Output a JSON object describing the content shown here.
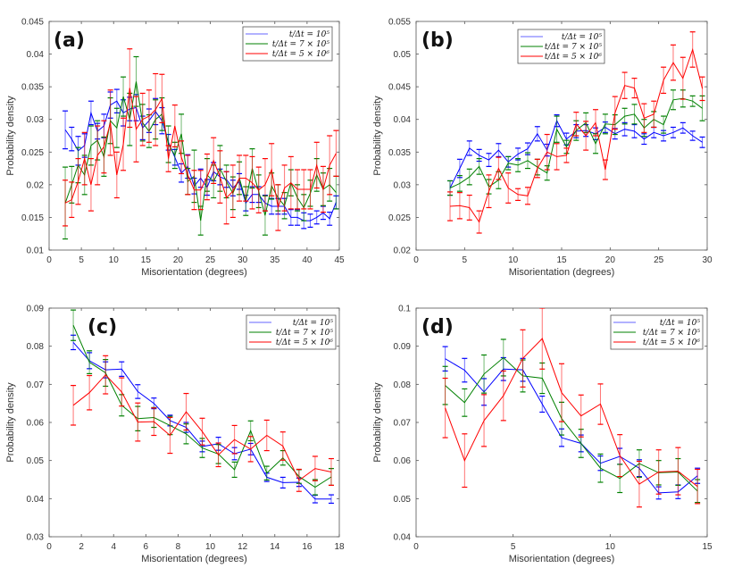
{
  "legend": [
    {
      "name": "t/Δt = 10⁵",
      "color": "#0000ff"
    },
    {
      "name": "t/Δt = 7 × 10⁵",
      "color": "#008000"
    },
    {
      "name": "t/Δt = 5 × 10⁶",
      "color": "#ff0000"
    }
  ],
  "chart_data": [
    {
      "type": "line",
      "panel_label": "(a)",
      "xlabel": "Misorientation (degrees)",
      "ylabel": "Probability density",
      "xlim": [
        0,
        45
      ],
      "ylim": [
        0.01,
        0.045
      ],
      "xticks": [
        0,
        5,
        10,
        15,
        20,
        25,
        30,
        35,
        40,
        45
      ],
      "yticks": [
        0.01,
        0.015,
        0.02,
        0.025,
        0.03,
        0.035,
        0.04,
        0.045
      ],
      "legend_position": "top-right",
      "x": [
        2.5,
        3.5,
        4.5,
        5.5,
        6.5,
        7.5,
        8.5,
        9.5,
        10.5,
        11.5,
        12.5,
        13.5,
        14.5,
        15.5,
        16.5,
        17.5,
        18.5,
        19.5,
        20.5,
        21.5,
        22.5,
        23.5,
        24.5,
        25.5,
        26.5,
        27.5,
        28.5,
        29.5,
        30.5,
        31.5,
        32.5,
        33.5,
        34.5,
        35.5,
        36.5,
        37.5,
        38.5,
        39.5,
        40.5,
        41.5,
        42.5,
        43.5,
        44.5
      ],
      "series": [
        {
          "name": "t/Δt = 10⁵",
          "color": "#0000ff",
          "values": [
            0.0284,
            0.027,
            0.0252,
            0.026,
            0.031,
            0.0282,
            0.029,
            0.0322,
            0.0328,
            0.031,
            0.0316,
            0.0318,
            0.0287,
            0.0298,
            0.0312,
            0.0298,
            0.0265,
            0.0242,
            0.0218,
            0.0228,
            0.0198,
            0.021,
            0.0196,
            0.022,
            0.0212,
            0.0208,
            0.0195,
            0.0205,
            0.0172,
            0.0185,
            0.0185,
            0.0172,
            0.0167,
            0.0167,
            0.0167,
            0.015,
            0.015,
            0.0145,
            0.0145,
            0.015,
            0.0157,
            0.0148,
            0.0173
          ],
          "errors": [
            0.0029,
            0.0018,
            0.0022,
            0.0018,
            0.0018,
            0.0012,
            0.0018,
            0.002,
            0.0018,
            0.002,
            0.0018,
            0.002,
            0.0018,
            0.0018,
            0.002,
            0.002,
            0.0012,
            0.0012,
            0.0014,
            0.0018,
            0.0012,
            0.0014,
            0.0012,
            0.0014,
            0.0012,
            0.0012,
            0.0012,
            0.0012,
            0.0012,
            0.0012,
            0.0012,
            0.0012,
            0.0012,
            0.0012,
            0.0012,
            0.0012,
            0.0012,
            0.0012,
            0.001,
            0.001,
            0.001,
            0.001,
            0.001
          ]
        },
        {
          "name": "t/Δt = 7 × 10⁵",
          "color": "#008000",
          "values": [
            0.0172,
            0.02,
            0.023,
            0.0215,
            0.026,
            0.0268,
            0.0243,
            0.0298,
            0.0287,
            0.0335,
            0.03,
            0.0358,
            0.0295,
            0.0282,
            0.03,
            0.0308,
            0.0262,
            0.0245,
            0.0278,
            0.0205,
            0.0213,
            0.0145,
            0.0215,
            0.0205,
            0.0225,
            0.0205,
            0.0187,
            0.021,
            0.0175,
            0.0225,
            0.019,
            0.0153,
            0.0198,
            0.018,
            0.0168,
            0.0203,
            0.018,
            0.0165,
            0.0187,
            0.0215,
            0.0193,
            0.02,
            0.0188
          ],
          "errors": [
            0.0055,
            0.0028,
            0.0027,
            0.003,
            0.003,
            0.003,
            0.003,
            0.0035,
            0.003,
            0.003,
            0.004,
            0.0038,
            0.0028,
            0.0025,
            0.003,
            0.0025,
            0.0028,
            0.002,
            0.003,
            0.002,
            0.004,
            0.0022,
            0.0025,
            0.0025,
            0.0035,
            0.0025,
            0.0025,
            0.0025,
            0.0022,
            0.003,
            0.0025,
            0.003,
            0.002,
            0.002,
            0.002,
            0.002,
            0.002,
            0.002,
            0.002,
            0.0025,
            0.0025,
            0.0025,
            0.0025
          ]
        },
        {
          "name": "t/Δt = 5 × 10⁶",
          "color": "#ff0000",
          "values": [
            0.0172,
            0.0177,
            0.0205,
            0.024,
            0.02,
            0.0245,
            0.0258,
            0.0295,
            0.0215,
            0.0262,
            0.0348,
            0.0285,
            0.03,
            0.0305,
            0.0315,
            0.0332,
            0.024,
            0.029,
            0.0242,
            0.0215,
            0.0192,
            0.0192,
            0.0212,
            0.0237,
            0.0212,
            0.018,
            0.019,
            0.021,
            0.021,
            0.0203,
            0.0192,
            0.02,
            0.0223,
            0.0165,
            0.0195,
            0.0203,
            0.0193,
            0.0193,
            0.0193,
            0.023,
            0.0193,
            0.023,
            0.0248
          ],
          "errors": [
            0.0035,
            0.0027,
            0.0035,
            0.004,
            0.004,
            0.0045,
            0.004,
            0.005,
            0.0035,
            0.004,
            0.006,
            0.005,
            0.004,
            0.004,
            0.0055,
            0.0037,
            0.002,
            0.0032,
            0.0025,
            0.003,
            0.003,
            0.003,
            0.0035,
            0.0035,
            0.004,
            0.004,
            0.004,
            0.0035,
            0.0035,
            0.004,
            0.0035,
            0.004,
            0.004,
            0.0035,
            0.0035,
            0.004,
            0.003,
            0.003,
            0.003,
            0.0035,
            0.0035,
            0.0045,
            0.0035
          ]
        }
      ]
    },
    {
      "type": "line",
      "panel_label": "(b)",
      "xlabel": "Misorientation (degrees)",
      "ylabel": "Probability density",
      "xlim": [
        0,
        30
      ],
      "ylim": [
        0.02,
        0.055
      ],
      "xticks": [
        0,
        5,
        10,
        15,
        20,
        25,
        30
      ],
      "yticks": [
        0.02,
        0.025,
        0.03,
        0.035,
        0.04,
        0.045,
        0.05,
        0.055
      ],
      "legend_position": "top-center",
      "x": [
        3.5,
        4.5,
        5.5,
        6.5,
        7.5,
        8.5,
        9.5,
        10.5,
        11.5,
        12.5,
        13.5,
        14.5,
        15.5,
        16.5,
        17.5,
        18.5,
        19.5,
        20.5,
        21.5,
        22.5,
        23.5,
        24.5,
        25.5,
        26.5,
        27.5,
        28.5,
        29.5
      ],
      "series": [
        {
          "name": "t/Δt = 10⁵",
          "color": "#0000ff",
          "values": [
            0.0295,
            0.0325,
            0.0356,
            0.0345,
            0.0338,
            0.0353,
            0.0335,
            0.0347,
            0.0355,
            0.0378,
            0.0353,
            0.0398,
            0.037,
            0.0382,
            0.0383,
            0.0378,
            0.0388,
            0.0378,
            0.0385,
            0.0382,
            0.037,
            0.038,
            0.0375,
            0.038,
            0.0387,
            0.0375,
            0.0365
          ],
          "errors": [
            0.0011,
            0.0014,
            0.0011,
            0.0009,
            0.001,
            0.001,
            0.0008,
            0.0009,
            0.0009,
            0.0011,
            0.0009,
            0.0009,
            0.0009,
            0.001,
            0.0009,
            0.0009,
            0.0008,
            0.0008,
            0.001,
            0.001,
            0.0008,
            0.0008,
            0.0008,
            0.0008,
            0.0008,
            0.0007,
            0.0008
          ]
        },
        {
          "name": "t/Δt = 7 × 10⁵",
          "color": "#008000",
          "values": [
            0.0295,
            0.0302,
            0.0312,
            0.0328,
            0.0297,
            0.0307,
            0.0333,
            0.033,
            0.0337,
            0.0327,
            0.0318,
            0.0385,
            0.0358,
            0.0383,
            0.0395,
            0.0363,
            0.0393,
            0.0392,
            0.0405,
            0.0408,
            0.0387,
            0.04,
            0.0392,
            0.043,
            0.0432,
            0.0428,
            0.0417
          ],
          "errors": [
            0.0011,
            0.0012,
            0.0012,
            0.0012,
            0.0011,
            0.0013,
            0.001,
            0.001,
            0.0012,
            0.0012,
            0.0011,
            0.002,
            0.001,
            0.0015,
            0.0015,
            0.0015,
            0.0015,
            0.0015,
            0.0012,
            0.0015,
            0.0013,
            0.0012,
            0.0013,
            0.0015,
            0.0013,
            0.0008,
            0.0019
          ]
        },
        {
          "name": "t/Δt = 5 × 10⁶",
          "color": "#ff0000",
          "values": [
            0.0267,
            0.0268,
            0.0265,
            0.0243,
            0.029,
            0.0325,
            0.0295,
            0.0285,
            0.0283,
            0.0325,
            0.035,
            0.0343,
            0.0345,
            0.0393,
            0.0375,
            0.0395,
            0.0323,
            0.041,
            0.0452,
            0.0448,
            0.0402,
            0.0408,
            0.046,
            0.0487,
            0.0463,
            0.0507,
            0.0447
          ],
          "errors": [
            0.0022,
            0.002,
            0.0019,
            0.0017,
            0.0025,
            0.0017,
            0.0023,
            0.0009,
            0.0013,
            0.0014,
            0.0027,
            0.002,
            0.0011,
            0.0018,
            0.0022,
            0.002,
            0.0015,
            0.0025,
            0.002,
            0.0015,
            0.0022,
            0.002,
            0.002,
            0.0027,
            0.0032,
            0.0027,
            0.0018
          ]
        }
      ]
    },
    {
      "type": "line",
      "panel_label": "(c)",
      "xlabel": "Misorientation (degrees)",
      "ylabel": "Probability density",
      "xlim": [
        0,
        18
      ],
      "ylim": [
        0.03,
        0.09
      ],
      "xticks": [
        0,
        2,
        4,
        6,
        8,
        10,
        12,
        14,
        16,
        18
      ],
      "yticks": [
        0.03,
        0.04,
        0.05,
        0.06,
        0.07,
        0.08,
        0.09
      ],
      "legend_position": "top-right",
      "x": [
        1.5,
        2.5,
        3.5,
        4.5,
        5.5,
        6.5,
        7.5,
        8.5,
        9.5,
        10.5,
        11.5,
        12.5,
        13.5,
        14.5,
        15.5,
        16.5,
        17.5
      ],
      "series": [
        {
          "name": "t/Δt = 10⁵",
          "color": "#0000ff",
          "values": [
            0.081,
            0.0762,
            0.0738,
            0.074,
            0.0681,
            0.065,
            0.0605,
            0.0587,
            0.0537,
            0.0544,
            0.0518,
            0.053,
            0.0456,
            0.0442,
            0.0443,
            0.0399,
            0.0399
          ],
          "errors": [
            0.0019,
            0.0021,
            0.0021,
            0.0019,
            0.0018,
            0.0014,
            0.0014,
            0.0013,
            0.0014,
            0.0017,
            0.0016,
            0.0015,
            0.0011,
            0.0014,
            0.0011,
            0.001,
            0.0011
          ]
        },
        {
          "name": "t/Δt = 7 × 10⁵",
          "color": "#008000",
          "values": [
            0.0855,
            0.0758,
            0.073,
            0.0645,
            0.061,
            0.0613,
            0.0592,
            0.057,
            0.0533,
            0.0517,
            0.0476,
            0.0578,
            0.0467,
            0.0507,
            0.0458,
            0.043,
            0.0457
          ],
          "errors": [
            0.004,
            0.003,
            0.0035,
            0.0028,
            0.0032,
            0.0026,
            0.0024,
            0.0026,
            0.0025,
            0.0025,
            0.002,
            0.0026,
            0.0018,
            0.0019,
            0.0018,
            0.002,
            0.0022
          ]
        },
        {
          "name": "t/Δt = 5 × 10⁶",
          "color": "#ff0000",
          "values": [
            0.0645,
            0.0678,
            0.0725,
            0.068,
            0.0601,
            0.0602,
            0.0566,
            0.0628,
            0.0576,
            0.0515,
            0.0555,
            0.053,
            0.0566,
            0.0538,
            0.0448,
            0.0479,
            0.047
          ],
          "errors": [
            0.0052,
            0.0045,
            0.005,
            0.0037,
            0.005,
            0.0036,
            0.0047,
            0.0048,
            0.0035,
            0.0031,
            0.0037,
            0.0033,
            0.004,
            0.0037,
            0.0029,
            0.0032,
            0.0035
          ]
        }
      ]
    },
    {
      "type": "line",
      "panel_label": "(d)",
      "xlabel": "Misorientation (degrees)",
      "ylabel": "Probability density",
      "xlim": [
        0,
        15
      ],
      "ylim": [
        0.04,
        0.1
      ],
      "xticks": [
        0,
        5,
        10,
        15
      ],
      "yticks": [
        0.04,
        0.05,
        0.06,
        0.07,
        0.08,
        0.09,
        0.1
      ],
      "legend_position": "top-right",
      "x": [
        1.5,
        2.5,
        3.5,
        4.5,
        5.5,
        6.5,
        7.5,
        8.5,
        9.5,
        10.5,
        11.5,
        12.5,
        13.5,
        14.5
      ],
      "series": [
        {
          "name": "t/Δt = 10⁵",
          "color": "#0000ff",
          "values": [
            0.0867,
            0.0837,
            0.078,
            0.084,
            0.0838,
            0.0748,
            0.066,
            0.0645,
            0.0593,
            0.0611,
            0.058,
            0.0515,
            0.0518,
            0.056
          ],
          "errors": [
            0.0032,
            0.0031,
            0.0035,
            0.003,
            0.003,
            0.0021,
            0.0023,
            0.0022,
            0.0019,
            0.0021,
            0.0022,
            0.0016,
            0.0018,
            0.002
          ]
        },
        {
          "name": "t/Δt = 7 × 10⁵",
          "color": "#008000",
          "values": [
            0.0797,
            0.0752,
            0.0827,
            0.087,
            0.0822,
            0.0816,
            0.071,
            0.0645,
            0.058,
            0.0553,
            0.0592,
            0.0568,
            0.057,
            0.052
          ],
          "errors": [
            0.005,
            0.0036,
            0.005,
            0.0048,
            0.0042,
            0.004,
            0.0043,
            0.0037,
            0.0037,
            0.0037,
            0.0036,
            0.0032,
            0.0035,
            0.003
          ]
        },
        {
          "name": "t/Δt = 5 × 10⁶",
          "color": "#ff0000",
          "values": [
            0.0738,
            0.06,
            0.0705,
            0.077,
            0.0868,
            0.092,
            0.0778,
            0.0717,
            0.0748,
            0.0613,
            0.0538,
            0.057,
            0.0572,
            0.0532
          ],
          "errors": [
            0.0078,
            0.007,
            0.0068,
            0.0065,
            0.0075,
            0.008,
            0.0076,
            0.0055,
            0.0053,
            0.0055,
            0.006,
            0.0058,
            0.0062,
            0.0045
          ]
        }
      ]
    }
  ]
}
